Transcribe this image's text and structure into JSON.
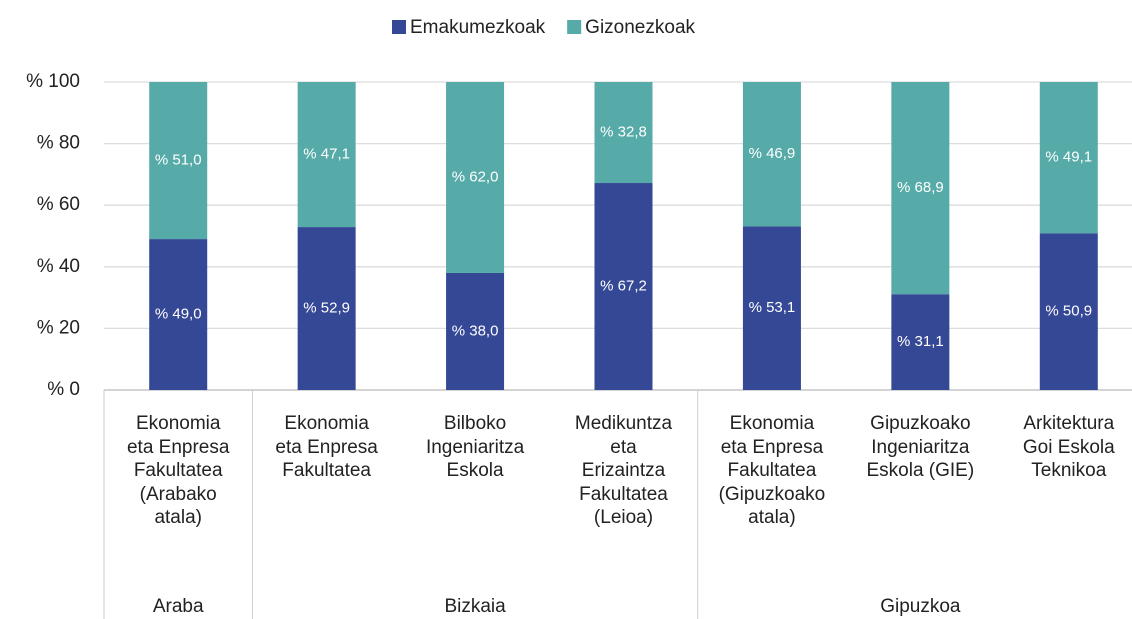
{
  "chart_data": {
    "type": "stacked_bar",
    "categories": [
      "Ekonomia\neta Enpresa\nFakultatea\n(Arabako\natala)",
      "Ekonomia\neta Enpresa\nFakultatea",
      "Bilboko\nIngeniaritza\nEskola",
      "Medikuntza\neta\nErizaintza\nFakultatea\n(Leioa)",
      "Ekonomia\neta Enpresa\nFakultatea\n(Gipuzkoako\natala)",
      "Gipuzkoako\nIngeniaritza\nEskola (GIE)",
      "Arkitektura\nGoi Eskola\nTeknikoa"
    ],
    "groups": [
      {
        "name": "Araba",
        "span": 1
      },
      {
        "name": "Bizkaia",
        "span": 3
      },
      {
        "name": "Gipuzkoa",
        "span": 3
      }
    ],
    "series": [
      {
        "name": "Emakumezkoak",
        "color": "#354896",
        "values": [
          49.0,
          52.9,
          38.0,
          67.2,
          53.1,
          31.1,
          50.9
        ],
        "value_labels": [
          "% 49,0",
          "% 52,9",
          "% 38,0",
          "% 67,2",
          "% 53,1",
          "% 31,1",
          "% 50,9"
        ]
      },
      {
        "name": "Gizonezkoak",
        "color": "#56aba8",
        "values": [
          51.0,
          47.1,
          62.0,
          32.8,
          46.9,
          68.9,
          49.1
        ],
        "value_labels": [
          "% 51,0",
          "% 47,1",
          "% 62,0",
          "% 32,8",
          "% 46,9",
          "% 68,9",
          "% 49,1"
        ]
      }
    ],
    "ylim": [
      0,
      100
    ],
    "yticks": [
      {
        "value": 0,
        "label": "% 0"
      },
      {
        "value": 20,
        "label": "% 20"
      },
      {
        "value": 40,
        "label": "% 40"
      },
      {
        "value": 60,
        "label": "% 60"
      },
      {
        "value": 80,
        "label": "% 80"
      },
      {
        "value": 100,
        "label": "% 100"
      }
    ],
    "grid": true,
    "legend": "top"
  }
}
